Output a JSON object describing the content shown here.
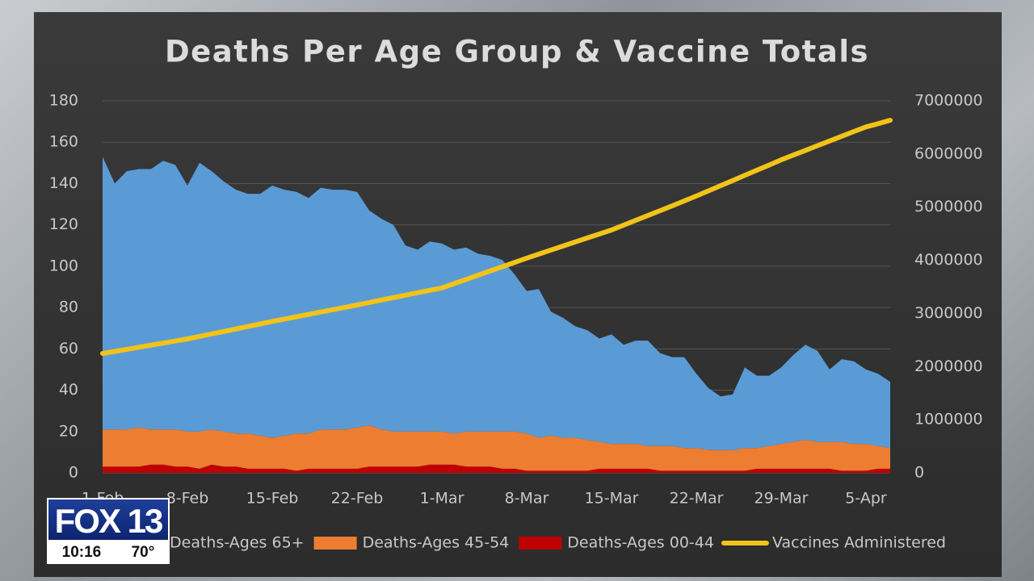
{
  "chart_data": {
    "type": "area",
    "title": "Deaths Per Age Group & Vaccine Totals",
    "stacked": true,
    "grid": true,
    "categories": [
      "1-Feb",
      null,
      null,
      null,
      null,
      null,
      null,
      "8-Feb",
      null,
      null,
      null,
      null,
      null,
      null,
      "15-Feb",
      null,
      null,
      null,
      null,
      null,
      null,
      "22-Feb",
      null,
      null,
      null,
      null,
      null,
      null,
      "1-Mar",
      null,
      null,
      null,
      null,
      null,
      null,
      "8-Mar",
      null,
      null,
      null,
      null,
      null,
      null,
      "15-Mar",
      null,
      null,
      null,
      null,
      null,
      null,
      "22-Mar",
      null,
      null,
      null,
      null,
      null,
      null,
      "29-Mar",
      null,
      null,
      null,
      null,
      null,
      null,
      "5-Apr",
      null,
      null
    ],
    "series": [
      {
        "name": "Deaths-Ages 65+",
        "color": "#5b9bd5",
        "values": [
          132,
          119,
          125,
          125,
          126,
          130,
          128,
          119,
          130,
          125,
          121,
          118,
          116,
          117,
          122,
          119,
          117,
          114,
          117,
          116,
          116,
          114,
          104,
          102,
          100,
          90,
          88,
          92,
          91,
          89,
          89,
          86,
          85,
          83,
          76,
          69,
          72,
          60,
          58,
          54,
          53,
          50,
          53,
          48,
          50,
          51,
          45,
          43,
          44,
          36,
          30,
          26,
          27,
          39,
          35,
          34,
          37,
          42,
          46,
          44,
          35,
          40,
          40,
          36,
          35,
          32
        ]
      },
      {
        "name": "Deaths-Ages 45-54",
        "color": "#ed7d31",
        "values": [
          18,
          18,
          18,
          19,
          17,
          17,
          18,
          17,
          18,
          17,
          17,
          16,
          17,
          16,
          15,
          16,
          18,
          17,
          19,
          19,
          19,
          20,
          20,
          18,
          17,
          17,
          17,
          16,
          16,
          15,
          17,
          17,
          17,
          18,
          18,
          18,
          16,
          17,
          16,
          16,
          15,
          13,
          12,
          12,
          12,
          11,
          12,
          12,
          11,
          11,
          10,
          10,
          10,
          11,
          10,
          11,
          12,
          13,
          14,
          13,
          13,
          14,
          13,
          13,
          11,
          10
        ]
      },
      {
        "name": "Deaths-Ages 00-44",
        "color": "#c00000",
        "values": [
          3,
          3,
          3,
          3,
          4,
          4,
          3,
          3,
          2,
          4,
          3,
          3,
          2,
          2,
          2,
          2,
          1,
          2,
          2,
          2,
          2,
          2,
          3,
          3,
          3,
          3,
          3,
          4,
          4,
          4,
          3,
          3,
          3,
          2,
          2,
          1,
          1,
          1,
          1,
          1,
          1,
          2,
          2,
          2,
          2,
          2,
          1,
          1,
          1,
          1,
          1,
          1,
          1,
          1,
          2,
          2,
          2,
          2,
          2,
          2,
          2,
          1,
          1,
          1,
          2,
          2
        ]
      },
      {
        "name": "Vaccines Administered",
        "color": "#f2c318",
        "axis": "y2",
        "type": "line",
        "values": [
          2247000,
          2286000,
          2325000,
          2364000,
          2403000,
          2442000,
          2481000,
          2520000,
          2567000,
          2614000,
          2661000,
          2708000,
          2755000,
          2802000,
          2850000,
          2894000,
          2938000,
          2982000,
          3026000,
          3070000,
          3115000,
          3160000,
          3206000,
          3252000,
          3298000,
          3344000,
          3390000,
          3435000,
          3480000,
          3560000,
          3640000,
          3720000,
          3800000,
          3880000,
          3960000,
          4040000,
          4116000,
          4192000,
          4268000,
          4344000,
          4420000,
          4495000,
          4570000,
          4661000,
          4752000,
          4843000,
          4934000,
          5025000,
          5117000,
          5210000,
          5307000,
          5404000,
          5501000,
          5598000,
          5695000,
          5792000,
          5890000,
          5979000,
          6068000,
          6157000,
          6246000,
          6335000,
          6423000,
          6510000,
          6570000,
          6636000
        ]
      }
    ],
    "ylim": [
      0,
      180
    ],
    "yticks": [
      0,
      20,
      40,
      60,
      80,
      100,
      120,
      140,
      160,
      180
    ],
    "y2lim": [
      0,
      7000000
    ],
    "y2ticks": [
      0,
      1000000,
      2000000,
      3000000,
      4000000,
      5000000,
      6000000,
      7000000
    ]
  },
  "overlay": {
    "brand": "FOX 13",
    "time": "10:16",
    "temperature": "70°"
  }
}
